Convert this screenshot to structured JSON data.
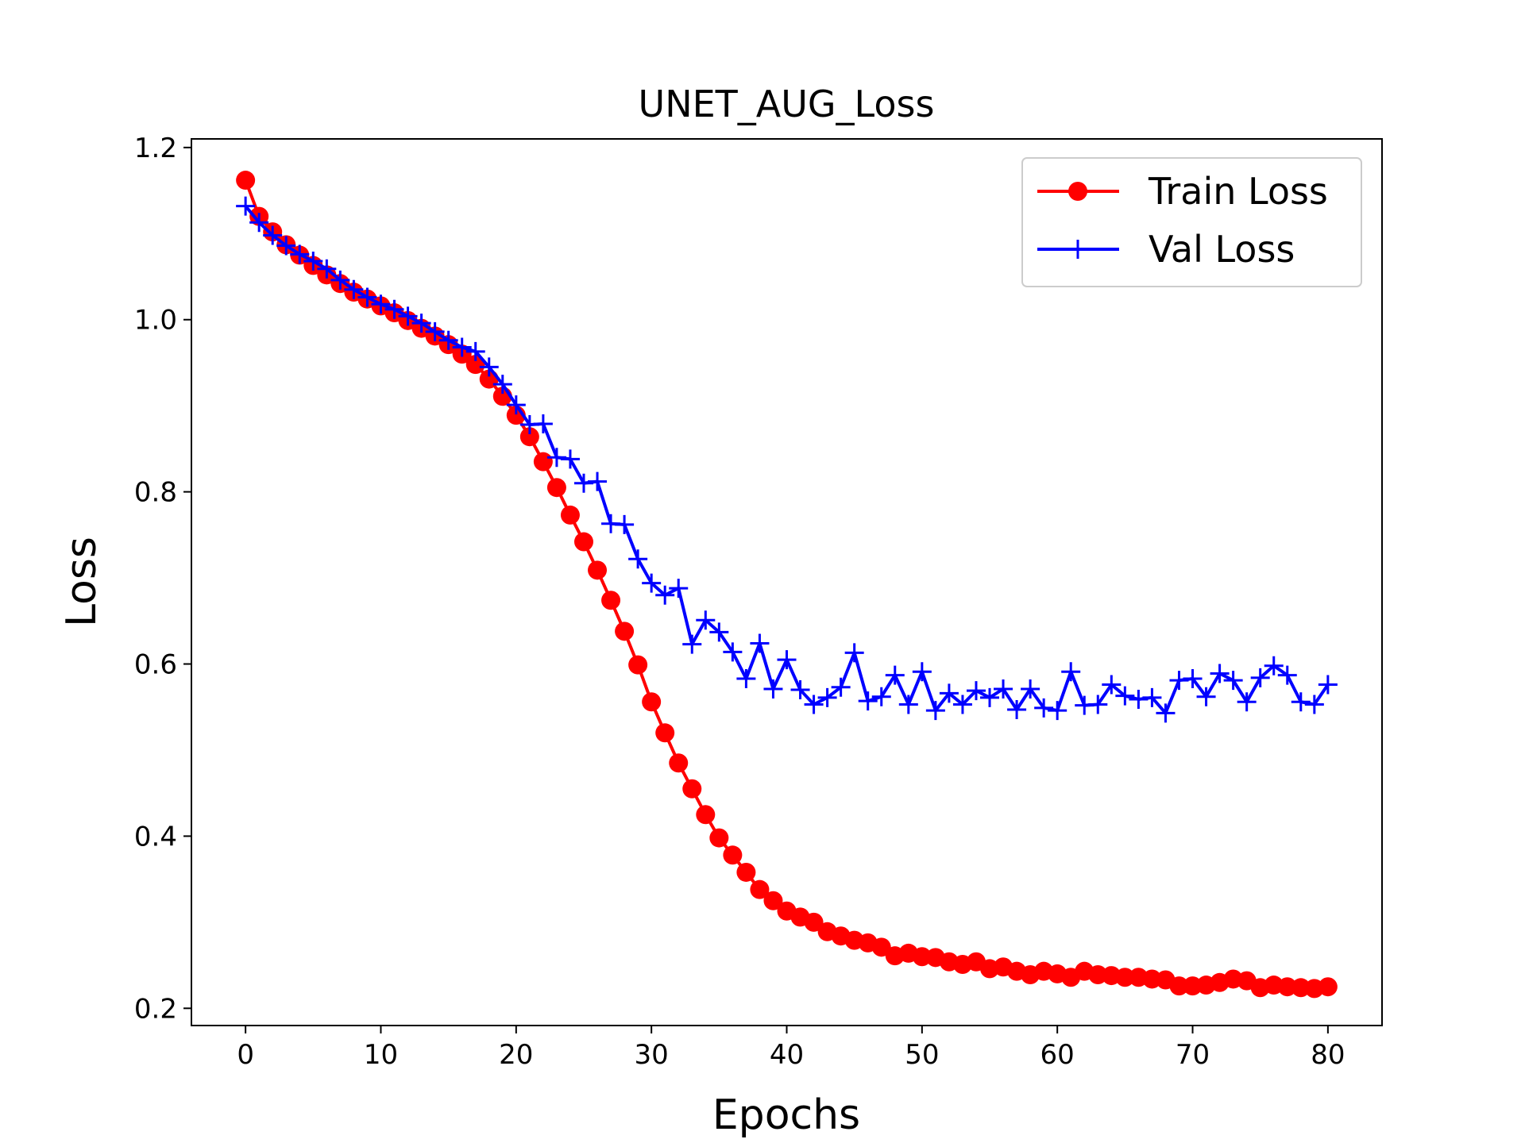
{
  "chart_data": {
    "type": "line",
    "title": "UNET_AUG_Loss",
    "xlabel": "Epochs",
    "ylabel": "Loss",
    "xlim": [
      -4,
      84
    ],
    "ylim": [
      0.18,
      1.21
    ],
    "xticks": [
      0,
      10,
      20,
      30,
      40,
      50,
      60,
      70,
      80
    ],
    "yticks": [
      0.2,
      0.4,
      0.6,
      0.8,
      1.0,
      1.2
    ],
    "xtick_labels": [
      "0",
      "10",
      "20",
      "30",
      "40",
      "50",
      "60",
      "70",
      "80"
    ],
    "ytick_labels": [
      "0.2",
      "0.4",
      "0.6",
      "0.8",
      "1.0",
      "1.2"
    ],
    "grid": false,
    "legend_position": "top-right",
    "x": [
      0,
      1,
      2,
      3,
      4,
      5,
      6,
      7,
      8,
      9,
      10,
      11,
      12,
      13,
      14,
      15,
      16,
      17,
      18,
      19,
      20,
      21,
      22,
      23,
      24,
      25,
      26,
      27,
      28,
      29,
      30,
      31,
      32,
      33,
      34,
      35,
      36,
      37,
      38,
      39,
      40,
      41,
      42,
      43,
      44,
      45,
      46,
      47,
      48,
      49,
      50,
      51,
      52,
      53,
      54,
      55,
      56,
      57,
      58,
      59,
      60,
      61,
      62,
      63,
      64,
      65,
      66,
      67,
      68,
      69,
      70,
      71,
      72,
      73,
      74,
      75,
      76,
      77,
      78,
      79,
      80
    ],
    "series": [
      {
        "name": "Train Loss",
        "color": "#ff0000",
        "marker": "circle",
        "values": [
          1.162,
          1.12,
          1.102,
          1.087,
          1.075,
          1.063,
          1.052,
          1.042,
          1.032,
          1.024,
          1.016,
          1.008,
          0.999,
          0.99,
          0.981,
          0.971,
          0.96,
          0.948,
          0.931,
          0.911,
          0.889,
          0.864,
          0.835,
          0.805,
          0.773,
          0.742,
          0.709,
          0.674,
          0.638,
          0.599,
          0.556,
          0.52,
          0.485,
          0.455,
          0.425,
          0.398,
          0.378,
          0.358,
          0.338,
          0.325,
          0.313,
          0.306,
          0.3,
          0.289,
          0.284,
          0.279,
          0.276,
          0.271,
          0.261,
          0.264,
          0.26,
          0.259,
          0.254,
          0.251,
          0.254,
          0.246,
          0.248,
          0.243,
          0.239,
          0.243,
          0.24,
          0.236,
          0.243,
          0.239,
          0.238,
          0.236,
          0.236,
          0.234,
          0.233,
          0.226,
          0.226,
          0.227,
          0.23,
          0.234,
          0.232,
          0.224,
          0.227,
          0.225,
          0.224,
          0.223,
          0.225
        ]
      },
      {
        "name": "Val Loss",
        "color": "#0000ff",
        "marker": "plus",
        "values": [
          1.132,
          1.113,
          1.098,
          1.086,
          1.076,
          1.068,
          1.059,
          1.046,
          1.035,
          1.026,
          1.018,
          1.012,
          1.004,
          0.996,
          0.986,
          0.976,
          0.968,
          0.963,
          0.945,
          0.925,
          0.901,
          0.878,
          0.879,
          0.84,
          0.838,
          0.81,
          0.812,
          0.763,
          0.762,
          0.722,
          0.694,
          0.68,
          0.688,
          0.623,
          0.651,
          0.637,
          0.614,
          0.583,
          0.624,
          0.571,
          0.605,
          0.57,
          0.553,
          0.561,
          0.573,
          0.613,
          0.557,
          0.562,
          0.587,
          0.553,
          0.591,
          0.546,
          0.566,
          0.553,
          0.569,
          0.561,
          0.571,
          0.547,
          0.571,
          0.549,
          0.546,
          0.591,
          0.552,
          0.553,
          0.576,
          0.563,
          0.559,
          0.561,
          0.543,
          0.581,
          0.583,
          0.562,
          0.589,
          0.581,
          0.556,
          0.584,
          0.598,
          0.587,
          0.556,
          0.553,
          0.576
        ]
      }
    ]
  }
}
